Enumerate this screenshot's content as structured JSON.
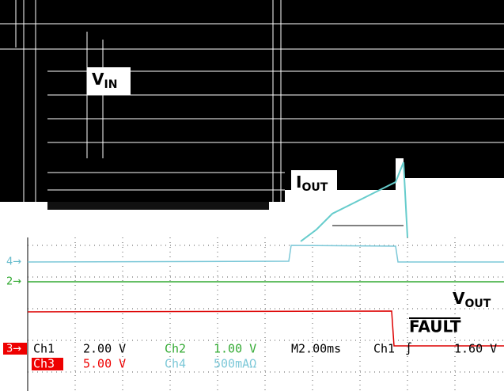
{
  "labels": {
    "vin": {
      "main": "V",
      "sub": "IN"
    },
    "iout": {
      "main": "I",
      "sub": "OUT"
    },
    "vout": {
      "main": "V",
      "sub": "OUT"
    },
    "fault": "FAULT"
  },
  "markers": {
    "ch4": "4→",
    "ch2": "2→",
    "ch3": "3→"
  },
  "readout": {
    "ch1": {
      "name": "Ch1",
      "scale": "2.00 V"
    },
    "ch2": {
      "name": "Ch2",
      "scale": "1.00 V"
    },
    "timebase": "M2.00ms",
    "trigger": {
      "source": "Ch1",
      "slope": "∫",
      "level": "1.60 V"
    },
    "ch3": {
      "name": "Ch3",
      "scale": "5.00 V"
    },
    "ch4": {
      "name": "Ch4",
      "scale": "500mAΩ"
    }
  }
}
